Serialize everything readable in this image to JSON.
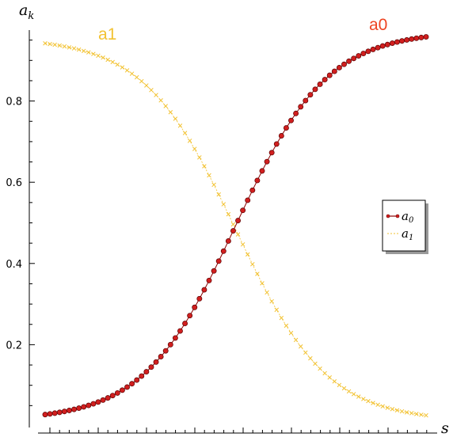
{
  "chart_data": {
    "type": "line",
    "xlabel": "s",
    "ylabel": "a",
    "ylabel_sub": "k",
    "ylim": [
      0,
      1
    ],
    "yticks": [
      0.2,
      0.4,
      0.6,
      0.8
    ],
    "ytick_labels": [
      "0.2",
      "0.4",
      "0.6",
      "0.8"
    ],
    "x_tick_labels_shown": false,
    "grid": false,
    "legend_position": "right",
    "series": [
      {
        "name": "a",
        "name_sub": "0",
        "annotation": "a0",
        "color": "#d11f1f",
        "label_color": "#ee4422",
        "marker": "circle",
        "y_start": 0.028,
        "y_mid": 0.5,
        "y_end": 0.958,
        "points": 80
      },
      {
        "name": "a",
        "name_sub": "1",
        "annotation": "a1",
        "color": "#f2c232",
        "label_color": "#f2c232",
        "marker": "cross",
        "y_start": 0.942,
        "y_mid": 0.5,
        "y_end": 0.026,
        "points": 80
      }
    ]
  }
}
